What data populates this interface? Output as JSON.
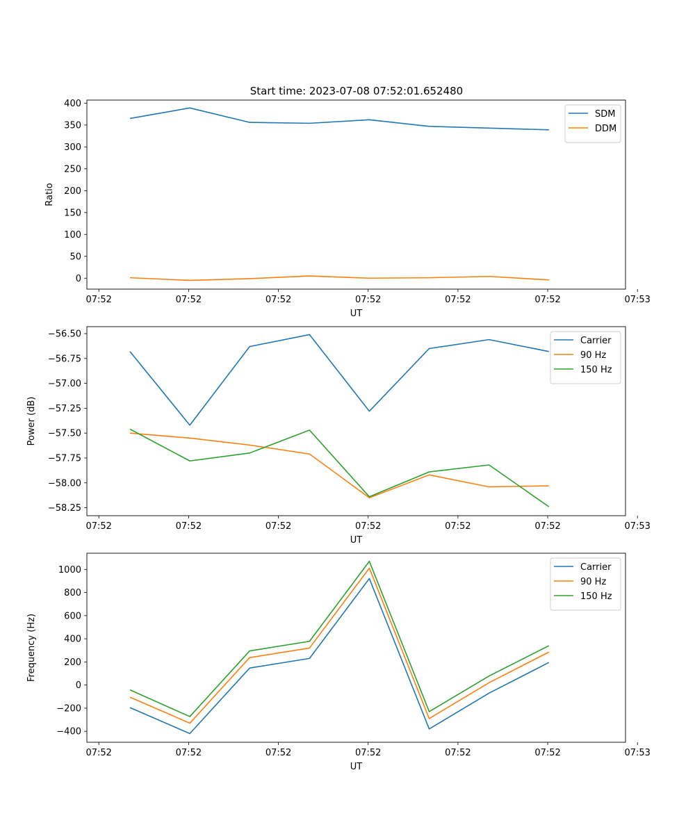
{
  "figure": {
    "suptitle": "Start time: 2023-07-08 07:52:01.652480"
  },
  "colors": {
    "blue": "#1f77b4",
    "orange": "#ff7f0e",
    "green": "#2ca02c"
  },
  "chart_data": [
    {
      "type": "line",
      "id": "ratio",
      "title": "Start time: 2023-07-08 07:52:01.652480",
      "xlabel": "UT",
      "ylabel": "Ratio",
      "xlim": [
        -0.62,
        8.38
      ],
      "ylim": [
        -25,
        407
      ],
      "x": [
        0.1,
        1.1,
        2.1,
        3.1,
        4.1,
        5.1,
        6.1,
        7.1
      ],
      "xticks": [
        {
          "v": -0.42,
          "label": "07:52"
        },
        {
          "v": 1.08,
          "label": "07:52"
        },
        {
          "v": 2.58,
          "label": "07:52"
        },
        {
          "v": 4.08,
          "label": "07:52"
        },
        {
          "v": 5.58,
          "label": "07:52"
        },
        {
          "v": 7.08,
          "label": "07:52"
        },
        {
          "v": 8.58,
          "label": "07:53"
        }
      ],
      "yticks": [
        {
          "v": 0,
          "label": "0"
        },
        {
          "v": 50,
          "label": "50"
        },
        {
          "v": 100,
          "label": "100"
        },
        {
          "v": 150,
          "label": "150"
        },
        {
          "v": 200,
          "label": "200"
        },
        {
          "v": 250,
          "label": "250"
        },
        {
          "v": 300,
          "label": "300"
        },
        {
          "v": 350,
          "label": "350"
        },
        {
          "v": 400,
          "label": "400"
        }
      ],
      "legend": "top-right",
      "series": [
        {
          "name": "SDM",
          "color": "#1f77b4",
          "values": [
            365,
            389,
            356,
            354,
            362,
            347,
            343,
            339
          ]
        },
        {
          "name": "DDM",
          "color": "#ff7f0e",
          "values": [
            1,
            -5,
            -1,
            5,
            0,
            1,
            4,
            -4
          ]
        }
      ]
    },
    {
      "type": "line",
      "id": "power",
      "title": "",
      "xlabel": "UT",
      "ylabel": "Power (dB)",
      "xlim": [
        -0.62,
        8.38
      ],
      "ylim": [
        -58.33,
        -56.43
      ],
      "x": [
        0.1,
        1.1,
        2.1,
        3.1,
        4.1,
        5.1,
        6.1,
        7.1
      ],
      "xticks": [
        {
          "v": -0.42,
          "label": "07:52"
        },
        {
          "v": 1.08,
          "label": "07:52"
        },
        {
          "v": 2.58,
          "label": "07:52"
        },
        {
          "v": 4.08,
          "label": "07:52"
        },
        {
          "v": 5.58,
          "label": "07:52"
        },
        {
          "v": 7.08,
          "label": "07:52"
        },
        {
          "v": 8.58,
          "label": "07:53"
        }
      ],
      "yticks": [
        {
          "v": -56.5,
          "label": "−56.50"
        },
        {
          "v": -56.75,
          "label": "−56.75"
        },
        {
          "v": -57.0,
          "label": "−57.00"
        },
        {
          "v": -57.25,
          "label": "−57.25"
        },
        {
          "v": -57.5,
          "label": "−57.50"
        },
        {
          "v": -57.75,
          "label": "−57.75"
        },
        {
          "v": -58.0,
          "label": "−58.00"
        },
        {
          "v": -58.25,
          "label": "−58.25"
        }
      ],
      "legend": "top-right",
      "series": [
        {
          "name": "Carrier",
          "color": "#1f77b4",
          "values": [
            -56.68,
            -57.42,
            -56.63,
            -56.51,
            -57.28,
            -56.65,
            -56.56,
            -56.68
          ]
        },
        {
          "name": "90 Hz",
          "color": "#ff7f0e",
          "values": [
            -57.5,
            -57.55,
            -57.62,
            -57.71,
            -58.15,
            -57.92,
            -58.04,
            -58.03
          ]
        },
        {
          "name": "150 Hz",
          "color": "#2ca02c",
          "values": [
            -57.46,
            -57.78,
            -57.7,
            -57.47,
            -58.14,
            -57.89,
            -57.82,
            -58.24
          ]
        }
      ]
    },
    {
      "type": "line",
      "id": "frequency",
      "title": "",
      "xlabel": "UT",
      "ylabel": "Frequency (Hz)",
      "xlim": [
        -0.62,
        8.38
      ],
      "ylim": [
        -495,
        1140
      ],
      "x": [
        0.1,
        1.1,
        2.1,
        3.1,
        4.1,
        5.1,
        6.1,
        7.1
      ],
      "xticks": [
        {
          "v": -0.42,
          "label": "07:52"
        },
        {
          "v": 1.08,
          "label": "07:52"
        },
        {
          "v": 2.58,
          "label": "07:52"
        },
        {
          "v": 4.08,
          "label": "07:52"
        },
        {
          "v": 5.58,
          "label": "07:52"
        },
        {
          "v": 7.08,
          "label": "07:52"
        },
        {
          "v": 8.58,
          "label": "07:53"
        }
      ],
      "yticks": [
        {
          "v": -400,
          "label": "−400"
        },
        {
          "v": -200,
          "label": "−200"
        },
        {
          "v": 0,
          "label": "0"
        },
        {
          "v": 200,
          "label": "200"
        },
        {
          "v": 400,
          "label": "400"
        },
        {
          "v": 600,
          "label": "600"
        },
        {
          "v": 800,
          "label": "800"
        },
        {
          "v": 1000,
          "label": "1000"
        }
      ],
      "legend": "top-right",
      "series": [
        {
          "name": "Carrier",
          "color": "#1f77b4",
          "values": [
            -195,
            -420,
            147,
            230,
            921,
            -380,
            -70,
            195
          ]
        },
        {
          "name": "90 Hz",
          "color": "#ff7f0e",
          "values": [
            -105,
            -330,
            237,
            320,
            1011,
            -290,
            20,
            285
          ]
        },
        {
          "name": "150 Hz",
          "color": "#2ca02c",
          "values": [
            -42,
            -273,
            295,
            378,
            1070,
            -230,
            78,
            340
          ]
        }
      ]
    }
  ]
}
